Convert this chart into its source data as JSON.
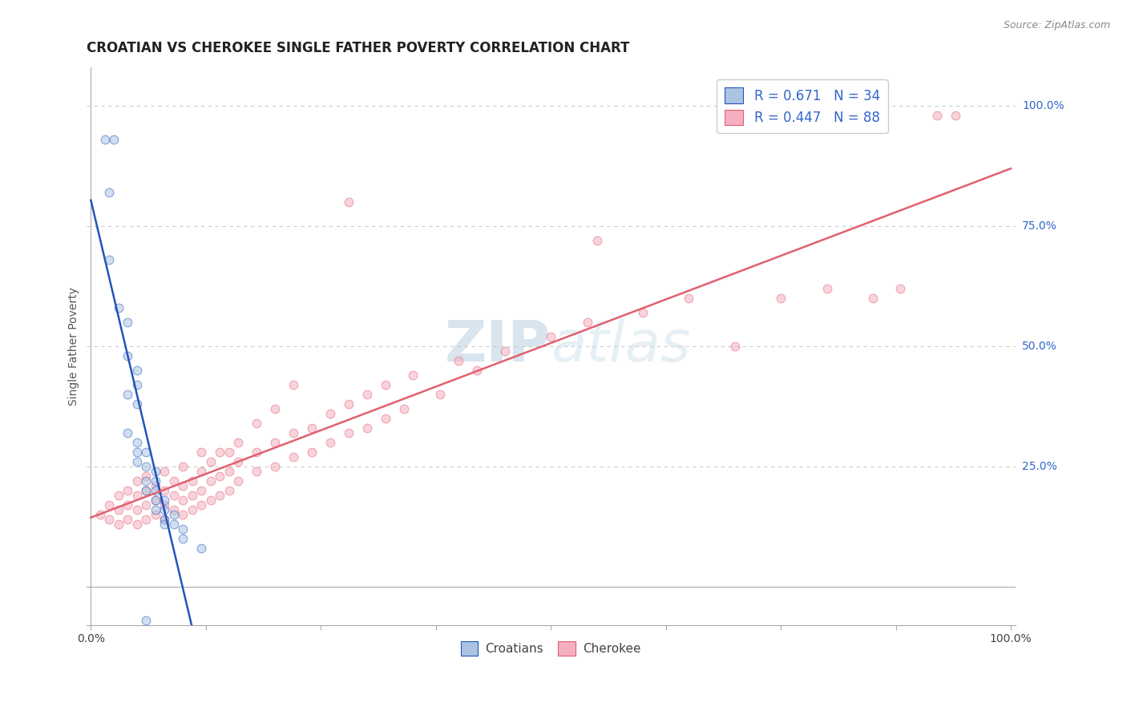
{
  "title": "CROATIAN VS CHEROKEE SINGLE FATHER POVERTY CORRELATION CHART",
  "source": "Source: ZipAtlas.com",
  "ylabel": "Single Father Poverty",
  "xlim": [
    -0.005,
    1.005
  ],
  "ylim": [
    -0.08,
    1.08
  ],
  "xtick_positions": [
    0.0,
    0.125,
    0.25,
    0.375,
    0.5,
    0.625,
    0.75,
    0.875,
    1.0
  ],
  "xtick_labels": [
    "0.0%",
    "",
    "",
    "",
    "",
    "",
    "",
    "",
    "100.0%"
  ],
  "ytick_positions": [
    0.25,
    0.5,
    0.75,
    1.0
  ],
  "ytick_labels": [
    "25.0%",
    "50.0%",
    "75.0%",
    "100.0%"
  ],
  "croatian_R": 0.671,
  "croatian_N": 34,
  "cherokee_R": 0.447,
  "cherokee_N": 88,
  "croatian_color": "#aac4e2",
  "cherokee_color": "#f5afc0",
  "croatian_line_color": "#2255bb",
  "cherokee_line_color": "#e06070",
  "legend_text_color": "#3366cc",
  "watermark_color": "#c8dff0",
  "croatian_points": [
    [
      0.015,
      0.93
    ],
    [
      0.025,
      0.93
    ],
    [
      0.02,
      0.82
    ],
    [
      0.02,
      0.68
    ],
    [
      0.03,
      0.58
    ],
    [
      0.04,
      0.55
    ],
    [
      0.04,
      0.48
    ],
    [
      0.05,
      0.45
    ],
    [
      0.04,
      0.4
    ],
    [
      0.05,
      0.42
    ],
    [
      0.05,
      0.38
    ],
    [
      0.04,
      0.32
    ],
    [
      0.05,
      0.3
    ],
    [
      0.05,
      0.28
    ],
    [
      0.05,
      0.26
    ],
    [
      0.06,
      0.28
    ],
    [
      0.06,
      0.25
    ],
    [
      0.06,
      0.22
    ],
    [
      0.07,
      0.24
    ],
    [
      0.07,
      0.22
    ],
    [
      0.06,
      0.2
    ],
    [
      0.07,
      0.2
    ],
    [
      0.07,
      0.18
    ],
    [
      0.07,
      0.16
    ],
    [
      0.08,
      0.18
    ],
    [
      0.08,
      0.16
    ],
    [
      0.08,
      0.14
    ],
    [
      0.08,
      0.13
    ],
    [
      0.09,
      0.15
    ],
    [
      0.09,
      0.13
    ],
    [
      0.1,
      0.12
    ],
    [
      0.1,
      0.1
    ],
    [
      0.12,
      0.08
    ],
    [
      0.06,
      -0.07
    ]
  ],
  "cherokee_points": [
    [
      0.01,
      0.15
    ],
    [
      0.02,
      0.14
    ],
    [
      0.02,
      0.17
    ],
    [
      0.03,
      0.13
    ],
    [
      0.03,
      0.16
    ],
    [
      0.03,
      0.19
    ],
    [
      0.04,
      0.14
    ],
    [
      0.04,
      0.17
    ],
    [
      0.04,
      0.2
    ],
    [
      0.05,
      0.13
    ],
    [
      0.05,
      0.16
    ],
    [
      0.05,
      0.19
    ],
    [
      0.05,
      0.22
    ],
    [
      0.06,
      0.14
    ],
    [
      0.06,
      0.17
    ],
    [
      0.06,
      0.2
    ],
    [
      0.06,
      0.23
    ],
    [
      0.07,
      0.15
    ],
    [
      0.07,
      0.18
    ],
    [
      0.07,
      0.21
    ],
    [
      0.08,
      0.14
    ],
    [
      0.08,
      0.17
    ],
    [
      0.08,
      0.2
    ],
    [
      0.08,
      0.24
    ],
    [
      0.09,
      0.16
    ],
    [
      0.09,
      0.19
    ],
    [
      0.09,
      0.22
    ],
    [
      0.1,
      0.15
    ],
    [
      0.1,
      0.18
    ],
    [
      0.1,
      0.21
    ],
    [
      0.1,
      0.25
    ],
    [
      0.11,
      0.16
    ],
    [
      0.11,
      0.19
    ],
    [
      0.11,
      0.22
    ],
    [
      0.12,
      0.17
    ],
    [
      0.12,
      0.2
    ],
    [
      0.12,
      0.24
    ],
    [
      0.12,
      0.28
    ],
    [
      0.13,
      0.18
    ],
    [
      0.13,
      0.22
    ],
    [
      0.13,
      0.26
    ],
    [
      0.14,
      0.19
    ],
    [
      0.14,
      0.23
    ],
    [
      0.14,
      0.28
    ],
    [
      0.15,
      0.2
    ],
    [
      0.15,
      0.24
    ],
    [
      0.15,
      0.28
    ],
    [
      0.16,
      0.22
    ],
    [
      0.16,
      0.26
    ],
    [
      0.16,
      0.3
    ],
    [
      0.18,
      0.24
    ],
    [
      0.18,
      0.28
    ],
    [
      0.18,
      0.34
    ],
    [
      0.2,
      0.25
    ],
    [
      0.2,
      0.3
    ],
    [
      0.2,
      0.37
    ],
    [
      0.22,
      0.27
    ],
    [
      0.22,
      0.32
    ],
    [
      0.22,
      0.42
    ],
    [
      0.24,
      0.28
    ],
    [
      0.24,
      0.33
    ],
    [
      0.26,
      0.3
    ],
    [
      0.26,
      0.36
    ],
    [
      0.28,
      0.32
    ],
    [
      0.28,
      0.38
    ],
    [
      0.3,
      0.33
    ],
    [
      0.3,
      0.4
    ],
    [
      0.32,
      0.35
    ],
    [
      0.32,
      0.42
    ],
    [
      0.34,
      0.37
    ],
    [
      0.35,
      0.44
    ],
    [
      0.38,
      0.4
    ],
    [
      0.4,
      0.47
    ],
    [
      0.42,
      0.45
    ],
    [
      0.45,
      0.49
    ],
    [
      0.5,
      0.52
    ],
    [
      0.54,
      0.55
    ],
    [
      0.6,
      0.57
    ],
    [
      0.65,
      0.6
    ],
    [
      0.7,
      0.5
    ],
    [
      0.75,
      0.6
    ],
    [
      0.8,
      0.62
    ],
    [
      0.85,
      0.6
    ],
    [
      0.88,
      0.62
    ],
    [
      0.55,
      0.72
    ],
    [
      0.92,
      0.98
    ],
    [
      0.94,
      0.98
    ],
    [
      0.28,
      0.8
    ]
  ],
  "background_color": "#ffffff",
  "grid_color": "#cccccc",
  "title_color": "#222222",
  "marker_size": 60,
  "marker_alpha": 0.55
}
